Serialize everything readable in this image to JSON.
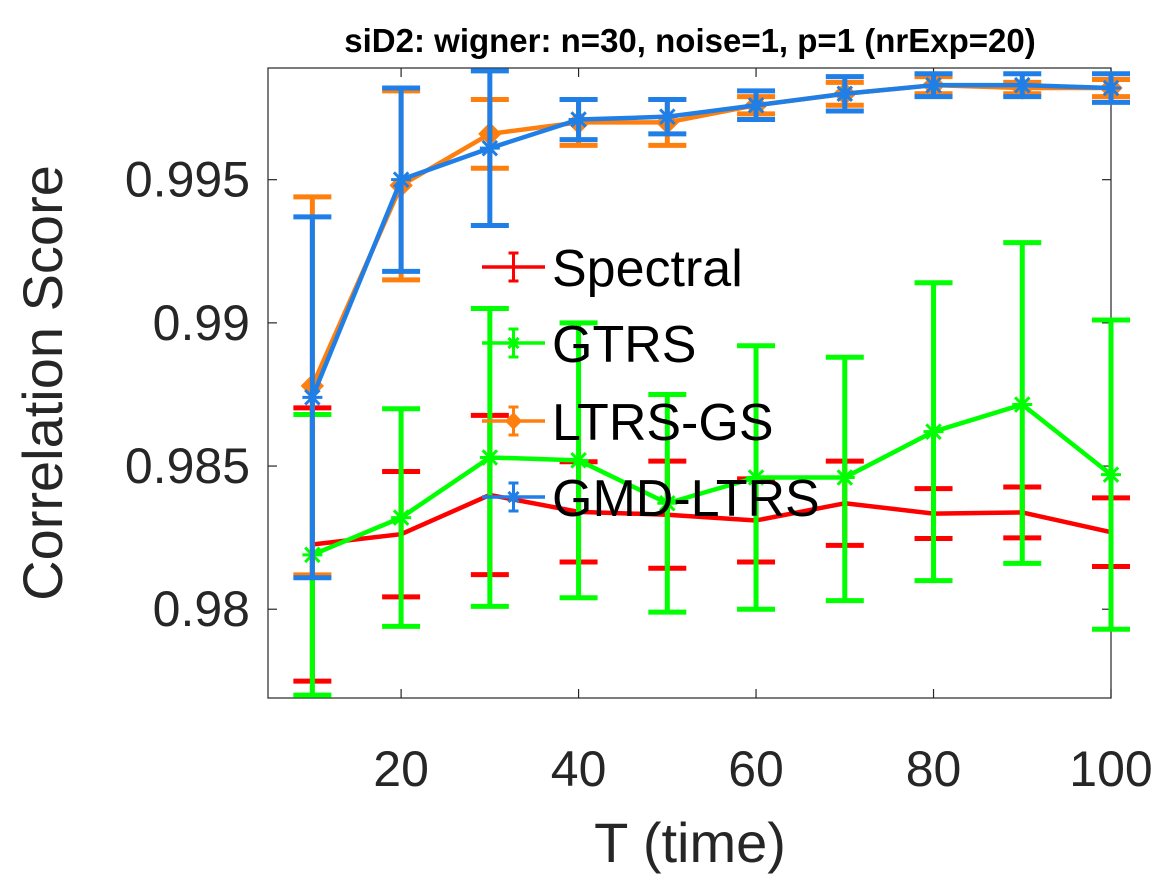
{
  "chart_data": {
    "type": "line",
    "title": "siD2: wigner: n=30, noise=1, p=1 (nrExp=20)",
    "xlabel": "T (time)",
    "ylabel": "Correlation Score",
    "xlim": [
      5,
      100
    ],
    "ylim": [
      0.9769,
      0.9989
    ],
    "xticks": [
      20,
      40,
      60,
      80,
      100
    ],
    "yticks": [
      0.98,
      0.985,
      0.99,
      0.995
    ],
    "xtick_labels": [
      "20",
      "40",
      "60",
      "80",
      "100"
    ],
    "ytick_labels": [
      "0.98",
      "0.985",
      "0.99",
      "0.995"
    ],
    "grid": false,
    "legend_position": "center",
    "error_bars": true,
    "x": [
      10,
      20,
      30,
      40,
      50,
      60,
      70,
      80,
      90,
      100
    ],
    "series": [
      {
        "name": "Spectral",
        "color": "#ff0000",
        "marker": "none",
        "values": [
          0.98226,
          0.98262,
          0.98399,
          0.9834,
          0.9833,
          0.9831,
          0.9837,
          0.98334,
          0.98338,
          0.98269
        ],
        "err_low": [
          0.97749,
          0.98043,
          0.98121,
          0.98165,
          0.98143,
          0.98165,
          0.98223,
          0.98247,
          0.98249,
          0.98149
        ],
        "err_high": [
          0.98703,
          0.98481,
          0.98677,
          0.98515,
          0.98517,
          0.98455,
          0.98517,
          0.98421,
          0.98427,
          0.98389
        ]
      },
      {
        "name": "GTRS",
        "color": "#00ff00",
        "marker": "star",
        "values": [
          0.9819,
          0.9832,
          0.9853,
          0.9852,
          0.9837,
          0.9846,
          0.9846,
          0.9862,
          0.98715,
          0.9847
        ],
        "err_low": [
          0.977,
          0.9794,
          0.9801,
          0.9804,
          0.9799,
          0.98,
          0.9803,
          0.981,
          0.9816,
          0.9793
        ],
        "err_high": [
          0.9868,
          0.987,
          0.9905,
          0.99,
          0.9875,
          0.9892,
          0.9888,
          0.9914,
          0.9928,
          0.9901
        ]
      },
      {
        "name": "LTRS-GS",
        "color": "#ff7f0e",
        "marker": "diamond",
        "values": [
          0.9878,
          0.9948,
          0.9966,
          0.997,
          0.997,
          0.9976,
          0.998,
          0.9983,
          0.9982,
          0.9982
        ],
        "err_low": [
          0.9812,
          0.9915,
          0.9954,
          0.9962,
          0.9962,
          0.9973,
          0.9976,
          0.998,
          0.998,
          0.9979
        ],
        "err_high": [
          0.9944,
          0.9981,
          0.9978,
          0.9978,
          0.9978,
          0.9979,
          0.9984,
          0.9986,
          0.9984,
          0.9985
        ]
      },
      {
        "name": "GMD-LTRS",
        "color": "#1f7fe6",
        "marker": "star",
        "values": [
          0.9874,
          0.995,
          0.9961,
          0.9971,
          0.9972,
          0.9976,
          0.998,
          0.9983,
          0.9983,
          0.9982
        ],
        "err_low": [
          0.9811,
          0.9918,
          0.9934,
          0.9964,
          0.9966,
          0.9971,
          0.9974,
          0.9979,
          0.9979,
          0.9977
        ],
        "err_high": [
          0.9937,
          0.9982,
          0.9988,
          0.9978,
          0.9978,
          0.9981,
          0.9986,
          0.9987,
          0.9987,
          0.9987
        ]
      }
    ]
  }
}
